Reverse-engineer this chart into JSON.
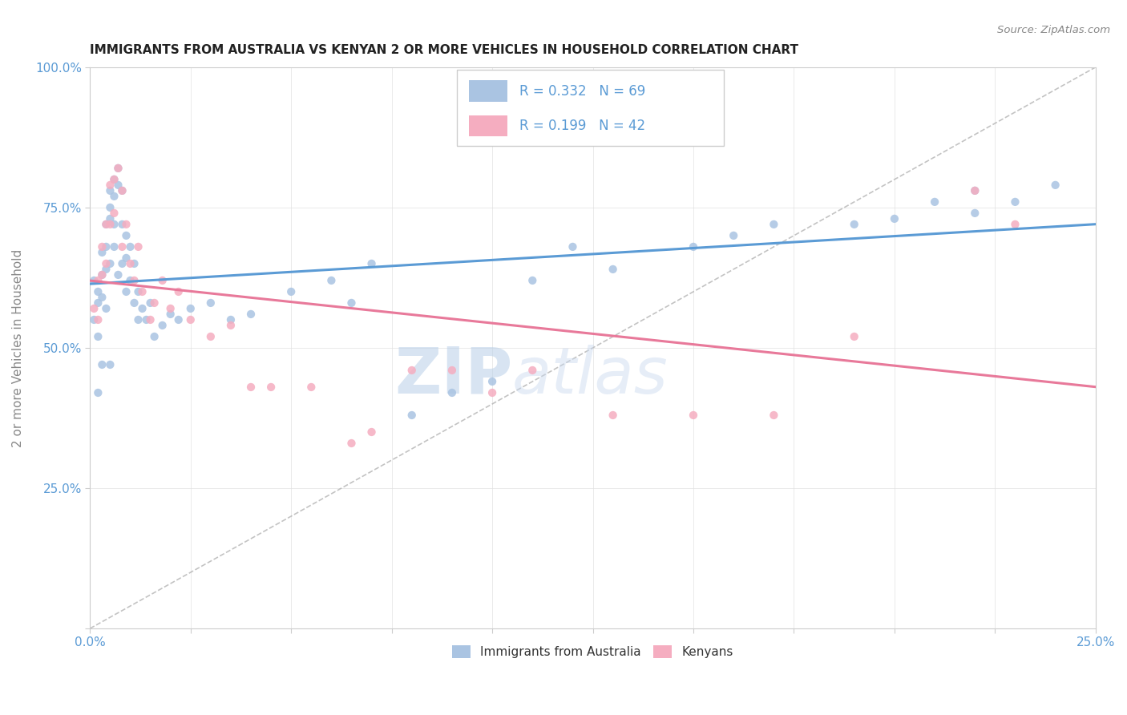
{
  "title": "IMMIGRANTS FROM AUSTRALIA VS KENYAN 2 OR MORE VEHICLES IN HOUSEHOLD CORRELATION CHART",
  "source": "Source: ZipAtlas.com",
  "ylabel": "2 or more Vehicles in Household",
  "watermark_zip": "ZIP",
  "watermark_atlas": "atlas",
  "blue_R": 0.332,
  "blue_N": 69,
  "pink_R": 0.199,
  "pink_N": 42,
  "xlim": [
    0.0,
    0.25
  ],
  "ylim": [
    0.0,
    1.0
  ],
  "blue_color": "#aac4e2",
  "pink_color": "#f5adc0",
  "blue_line_color": "#5b9bd5",
  "pink_line_color": "#e8799a",
  "dot_size": 55,
  "legend_label_blue": "Immigrants from Australia",
  "legend_label_pink": "Kenyans",
  "blue_x": [
    0.001,
    0.001,
    0.002,
    0.002,
    0.002,
    0.003,
    0.003,
    0.003,
    0.004,
    0.004,
    0.004,
    0.004,
    0.005,
    0.005,
    0.005,
    0.005,
    0.006,
    0.006,
    0.006,
    0.006,
    0.007,
    0.007,
    0.007,
    0.008,
    0.008,
    0.008,
    0.009,
    0.009,
    0.009,
    0.01,
    0.01,
    0.011,
    0.011,
    0.012,
    0.012,
    0.013,
    0.014,
    0.015,
    0.016,
    0.018,
    0.02,
    0.022,
    0.025,
    0.03,
    0.035,
    0.04,
    0.05,
    0.06,
    0.065,
    0.07,
    0.08,
    0.09,
    0.1,
    0.11,
    0.12,
    0.13,
    0.15,
    0.16,
    0.17,
    0.19,
    0.2,
    0.21,
    0.22,
    0.22,
    0.23,
    0.24,
    0.005,
    0.003,
    0.002
  ],
  "blue_y": [
    0.55,
    0.62,
    0.6,
    0.58,
    0.52,
    0.63,
    0.67,
    0.59,
    0.72,
    0.68,
    0.64,
    0.57,
    0.78,
    0.75,
    0.73,
    0.65,
    0.8,
    0.77,
    0.72,
    0.68,
    0.82,
    0.79,
    0.63,
    0.78,
    0.72,
    0.65,
    0.7,
    0.66,
    0.6,
    0.68,
    0.62,
    0.65,
    0.58,
    0.6,
    0.55,
    0.57,
    0.55,
    0.58,
    0.52,
    0.54,
    0.56,
    0.55,
    0.57,
    0.58,
    0.55,
    0.56,
    0.6,
    0.62,
    0.58,
    0.65,
    0.38,
    0.42,
    0.44,
    0.62,
    0.68,
    0.64,
    0.68,
    0.7,
    0.72,
    0.72,
    0.73,
    0.76,
    0.78,
    0.74,
    0.76,
    0.79,
    0.47,
    0.47,
    0.42
  ],
  "pink_x": [
    0.001,
    0.002,
    0.002,
    0.003,
    0.003,
    0.004,
    0.004,
    0.005,
    0.005,
    0.006,
    0.006,
    0.007,
    0.008,
    0.008,
    0.009,
    0.01,
    0.011,
    0.012,
    0.013,
    0.015,
    0.016,
    0.018,
    0.02,
    0.022,
    0.025,
    0.03,
    0.035,
    0.04,
    0.045,
    0.055,
    0.065,
    0.07,
    0.08,
    0.09,
    0.1,
    0.11,
    0.13,
    0.15,
    0.17,
    0.19,
    0.22,
    0.23
  ],
  "pink_y": [
    0.57,
    0.62,
    0.55,
    0.68,
    0.63,
    0.72,
    0.65,
    0.79,
    0.72,
    0.8,
    0.74,
    0.82,
    0.78,
    0.68,
    0.72,
    0.65,
    0.62,
    0.68,
    0.6,
    0.55,
    0.58,
    0.62,
    0.57,
    0.6,
    0.55,
    0.52,
    0.54,
    0.43,
    0.43,
    0.43,
    0.33,
    0.35,
    0.46,
    0.46,
    0.42,
    0.46,
    0.38,
    0.38,
    0.38,
    0.52,
    0.78,
    0.72
  ]
}
